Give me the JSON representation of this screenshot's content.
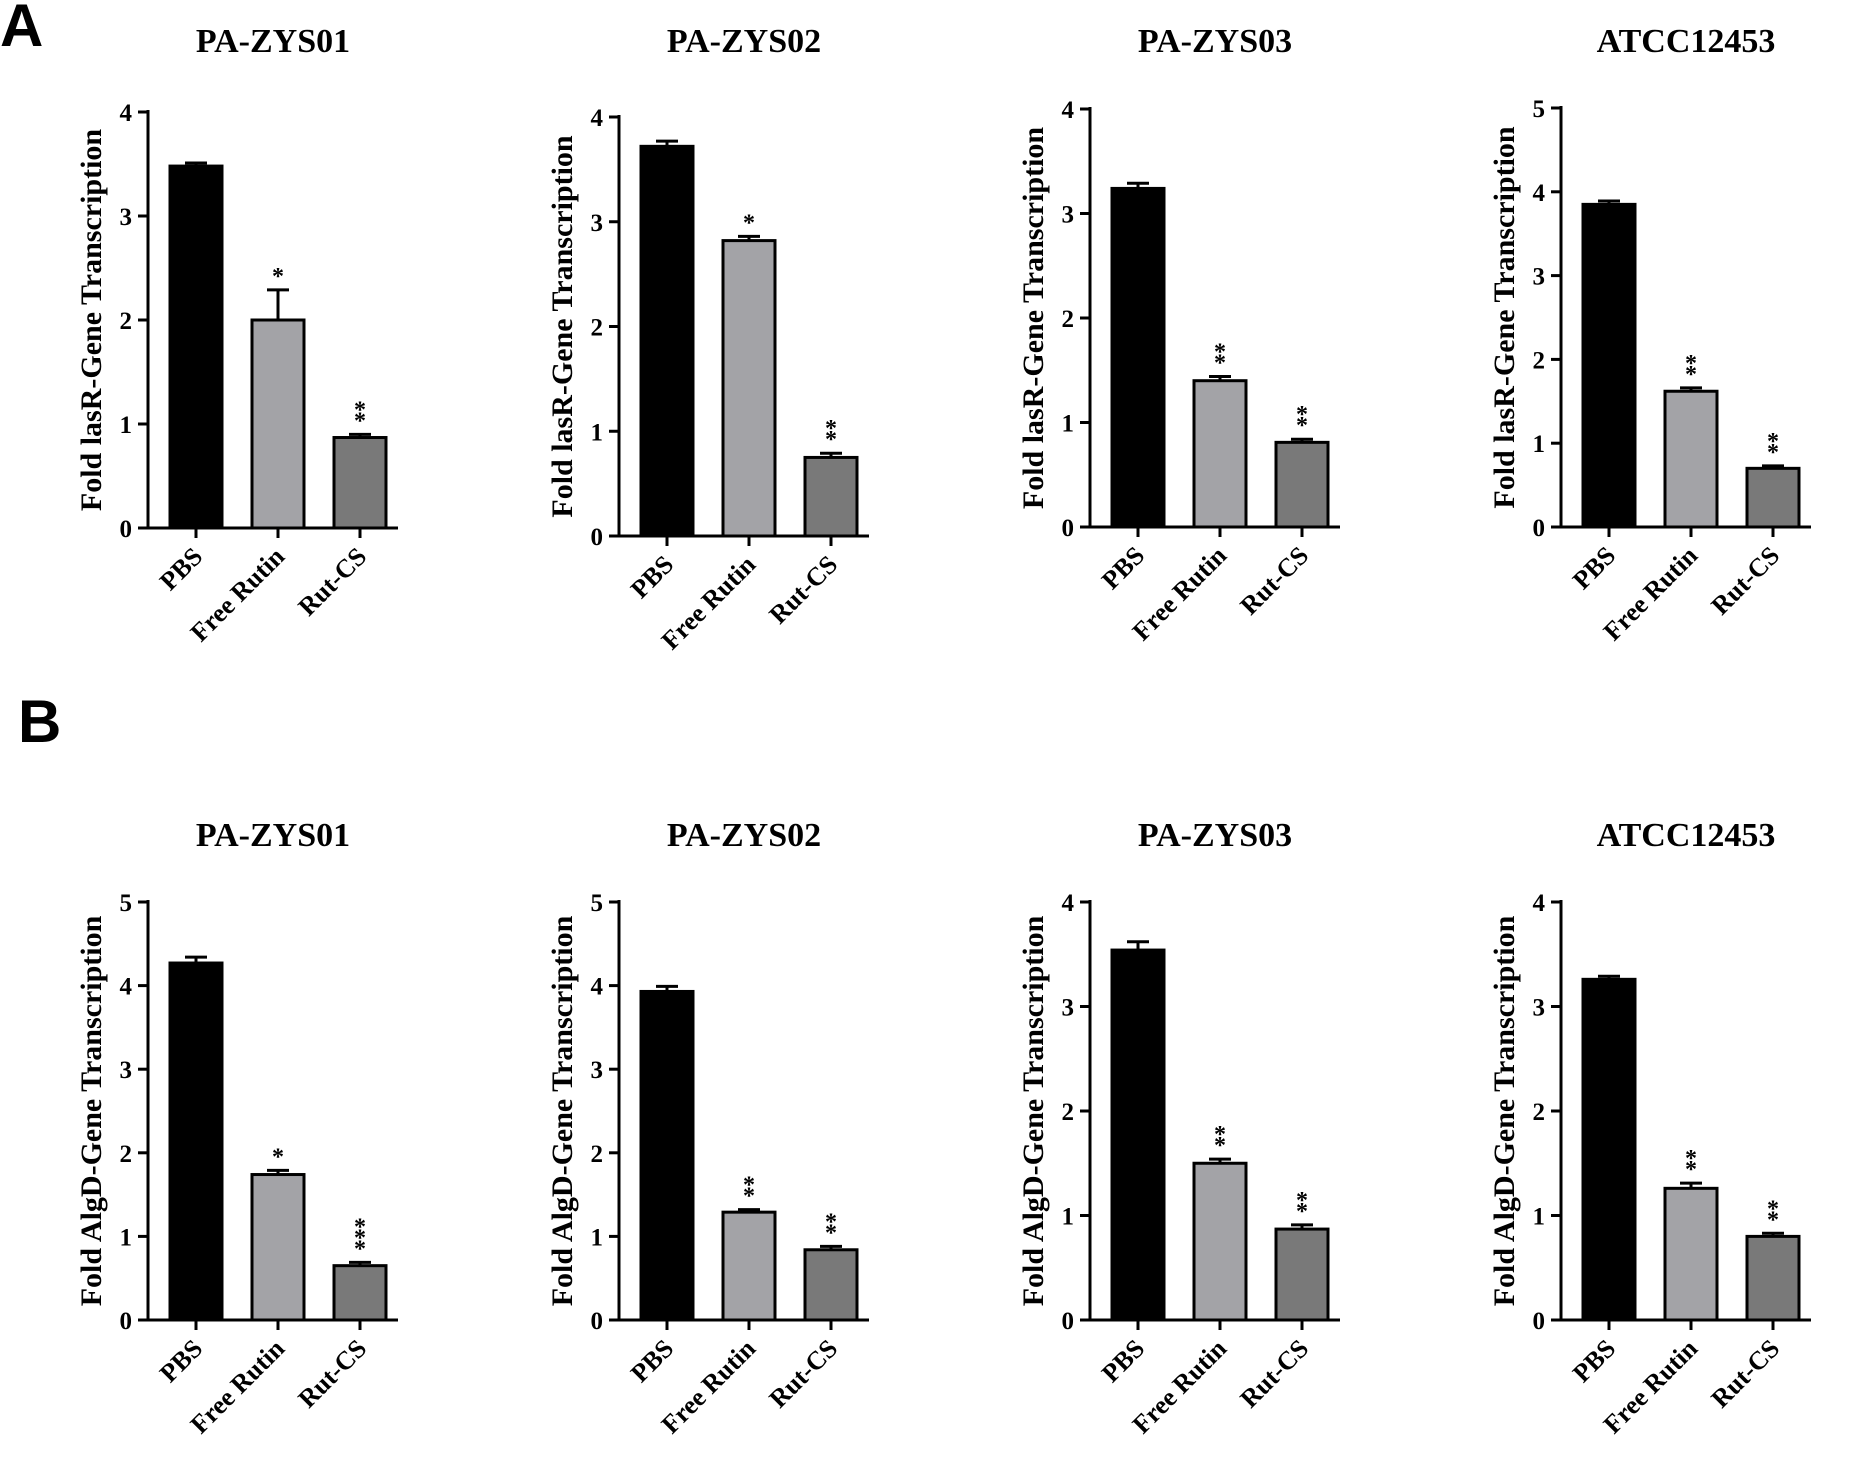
{
  "panels": [
    {
      "letter": "A"
    },
    {
      "letter": "B"
    }
  ],
  "colors": {
    "PBS": "#000000",
    "Free Rutin": "#a3a3a7",
    "Rut-CS": "#797979",
    "outline": "#000000"
  },
  "chart_data": [
    {
      "type": "bar",
      "panel": "A",
      "title": "PA-ZYS01",
      "ylabel": "Fold lasR-Gene Transcription",
      "categories": [
        "PBS",
        "Free Rutin",
        "Rut-CS"
      ],
      "values": [
        3.48,
        2.0,
        0.87
      ],
      "errors": [
        0.03,
        0.29,
        0.03
      ],
      "significance": [
        "",
        "*",
        "**"
      ],
      "ylim": [
        0,
        4
      ],
      "yticks": [
        0,
        1,
        2,
        3,
        4
      ]
    },
    {
      "type": "bar",
      "panel": "A",
      "title": "PA-ZYS02",
      "ylabel": "Fold lasR-Gene Transcription",
      "categories": [
        "PBS",
        "Free Rutin",
        "Rut-CS"
      ],
      "values": [
        3.72,
        2.82,
        0.75
      ],
      "errors": [
        0.05,
        0.04,
        0.04
      ],
      "significance": [
        "",
        "*",
        "**"
      ],
      "ylim": [
        0,
        4
      ],
      "yticks": [
        0,
        1,
        2,
        3,
        4
      ]
    },
    {
      "type": "bar",
      "panel": "A",
      "title": "PA-ZYS03",
      "ylabel": "Fold lasR-Gene Transcription",
      "categories": [
        "PBS",
        "Free Rutin",
        "Rut-CS"
      ],
      "values": [
        3.24,
        1.4,
        0.81
      ],
      "errors": [
        0.05,
        0.04,
        0.03
      ],
      "significance": [
        "",
        "**",
        "**"
      ],
      "ylim": [
        0,
        4
      ],
      "yticks": [
        0,
        1,
        2,
        3,
        4
      ]
    },
    {
      "type": "bar",
      "panel": "A",
      "title": "ATCC12453",
      "ylabel": "Fold lasR-Gene Transcription",
      "categories": [
        "PBS",
        "Free Rutin",
        "Rut-CS"
      ],
      "values": [
        3.85,
        1.62,
        0.7
      ],
      "errors": [
        0.04,
        0.04,
        0.03
      ],
      "significance": [
        "",
        "**",
        "**"
      ],
      "ylim": [
        0,
        5
      ],
      "yticks": [
        0,
        1,
        2,
        3,
        4,
        5
      ]
    },
    {
      "type": "bar",
      "panel": "B",
      "title": "PA-ZYS01",
      "ylabel": "Fold AlgD-Gene Transcription",
      "categories": [
        "PBS",
        "Free Rutin",
        "Rut-CS"
      ],
      "values": [
        4.27,
        1.74,
        0.65
      ],
      "errors": [
        0.07,
        0.05,
        0.04
      ],
      "significance": [
        "",
        "*",
        "***"
      ],
      "ylim": [
        0,
        5
      ],
      "yticks": [
        0,
        1,
        2,
        3,
        4,
        5
      ]
    },
    {
      "type": "bar",
      "panel": "B",
      "title": "PA-ZYS02",
      "ylabel": "Fold AlgD-Gene Transcription",
      "categories": [
        "PBS",
        "Free Rutin",
        "Rut-CS"
      ],
      "values": [
        3.93,
        1.29,
        0.84
      ],
      "errors": [
        0.06,
        0.03,
        0.04
      ],
      "significance": [
        "",
        "**",
        "**"
      ],
      "ylim": [
        0,
        5
      ],
      "yticks": [
        0,
        1,
        2,
        3,
        4,
        5
      ]
    },
    {
      "type": "bar",
      "panel": "B",
      "title": "PA-ZYS03",
      "ylabel": "Fold AlgD-Gene Transcription",
      "categories": [
        "PBS",
        "Free Rutin",
        "Rut-CS"
      ],
      "values": [
        3.54,
        1.5,
        0.87
      ],
      "errors": [
        0.08,
        0.04,
        0.04
      ],
      "significance": [
        "",
        "**",
        "**"
      ],
      "ylim": [
        0,
        4
      ],
      "yticks": [
        0,
        1,
        2,
        3,
        4
      ]
    },
    {
      "type": "bar",
      "panel": "B",
      "title": "ATCC12453",
      "ylabel": "Fold AlgD-Gene Transcription",
      "categories": [
        "PBS",
        "Free Rutin",
        "Rut-CS"
      ],
      "values": [
        3.26,
        1.26,
        0.8
      ],
      "errors": [
        0.03,
        0.05,
        0.03
      ],
      "significance": [
        "",
        "**",
        "**"
      ],
      "ylim": [
        0,
        4
      ],
      "yticks": [
        0,
        1,
        2,
        3,
        4
      ]
    }
  ]
}
